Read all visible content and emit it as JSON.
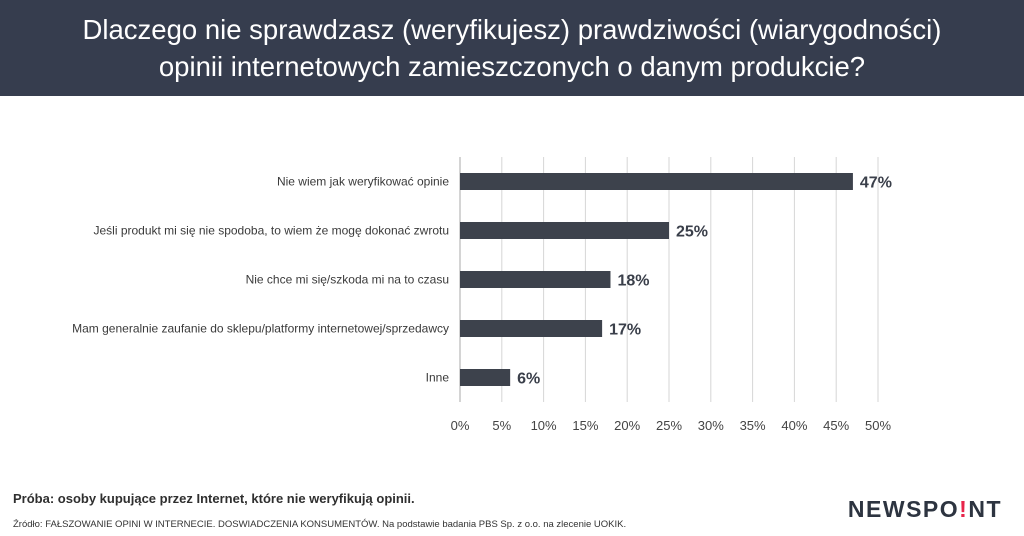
{
  "header": {
    "title_line1": "Dlaczego nie sprawdzasz (weryfikujesz) prawdziwości (wiarygodności)",
    "title_line2": "opinii internetowych zamieszczonych o danym produkcie?"
  },
  "chart_data": {
    "type": "bar",
    "orientation": "horizontal",
    "categories": [
      "Nie wiem jak weryfikować opinie",
      "Jeśli produkt mi się nie spodoba, to wiem że mogę dokonać zwrotu",
      "Nie chce mi się/szkoda mi na to czasu",
      "Mam generalnie zaufanie do sklepu/platformy internetowej/sprzedawcy",
      "Inne"
    ],
    "values": [
      47,
      25,
      18,
      17,
      6
    ],
    "value_labels": [
      "47%",
      "25%",
      "18%",
      "17%",
      "6%"
    ],
    "xlim": [
      0,
      50
    ],
    "ticks": [
      "0%",
      "5%",
      "10%",
      "15%",
      "20%",
      "25%",
      "30%",
      "35%",
      "40%",
      "45%",
      "50%"
    ],
    "grid": "vertical",
    "bar_color": "#3d424c",
    "grid_color": "#d6d6d6"
  },
  "footer": {
    "sample": "Próba: osoby kupujące przez Internet, które nie weryfikują opinii.",
    "source": "Źródło: FAŁSZOWANIE OPINI W INTERNECIE. DOSWIADCZENIA KONSUMENTÓW. Na podstawie badania PBS Sp. z o.o. na zlecenie UOKIK.",
    "logo_part1": "NEWSPO",
    "logo_dot": "!",
    "logo_part2": "NT"
  },
  "colors": {
    "header_bg": "#363d4e",
    "logo_accent": "#e7254a"
  }
}
